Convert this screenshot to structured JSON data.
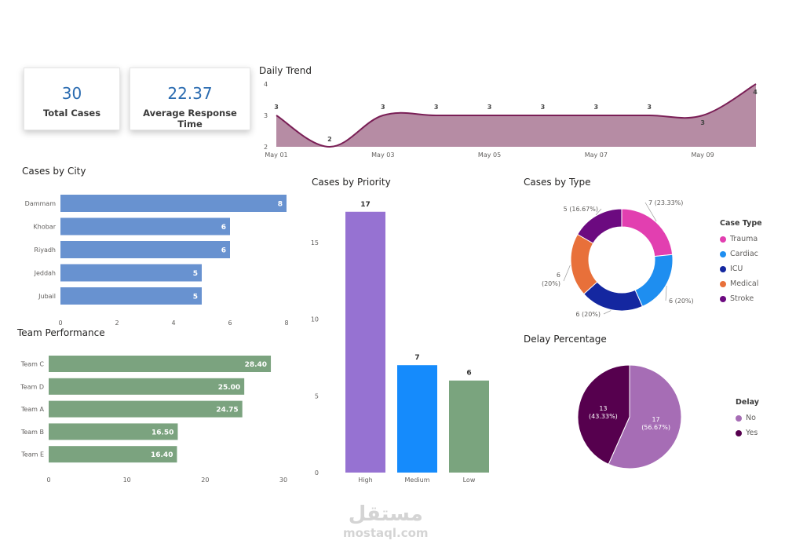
{
  "kpis": {
    "total_cases": {
      "value": "30",
      "label": "Total Cases"
    },
    "avg_response": {
      "value": "22.37",
      "label": "Average Response Time"
    }
  },
  "titles": {
    "daily_trend": "Daily Trend",
    "cases_by_city": "Cases by City",
    "team_performance": "Team Performance",
    "cases_by_priority": "Cases by Priority",
    "cases_by_type": "Cases by Type",
    "delay_percentage": "Delay Percentage"
  },
  "watermark": {
    "arabic": "مستقل",
    "latin": "mostaql.com"
  },
  "chart_data": [
    {
      "id": "daily_trend",
      "type": "area",
      "title": "Daily Trend",
      "x": [
        "May 01",
        "May 02",
        "May 03",
        "May 04",
        "May 05",
        "May 06",
        "May 07",
        "May 08",
        "May 09",
        "May 10"
      ],
      "x_tick_labels": [
        "May 01",
        "May 03",
        "May 05",
        "May 07",
        "May 09"
      ],
      "values": [
        3,
        2,
        3,
        3,
        3,
        3,
        3,
        3,
        3,
        4
      ],
      "data_labels": [
        "3",
        "2",
        "3",
        "3",
        "3",
        "3",
        "3",
        "3",
        "3",
        "4"
      ],
      "ylim": [
        2,
        4
      ],
      "y_ticks": [
        2,
        3,
        4
      ],
      "color": "#7a1f56",
      "fill": "#b68ca4"
    },
    {
      "id": "cases_by_city",
      "type": "bar",
      "orientation": "horizontal",
      "title": "Cases by City",
      "categories": [
        "Dammam",
        "Khobar",
        "Riyadh",
        "Jeddah",
        "Jubail"
      ],
      "values": [
        8,
        6,
        6,
        5,
        5
      ],
      "xlim": [
        0,
        8
      ],
      "x_ticks": [
        0,
        2,
        4,
        6,
        8
      ],
      "color": "#6892d0"
    },
    {
      "id": "team_performance",
      "type": "bar",
      "orientation": "horizontal",
      "title": "Team Performance",
      "categories": [
        "Team C",
        "Team D",
        "Team A",
        "Team B",
        "Team E"
      ],
      "values": [
        28.4,
        25.0,
        24.75,
        16.5,
        16.4
      ],
      "data_labels": [
        "28.40",
        "25.00",
        "24.75",
        "16.50",
        "16.40"
      ],
      "xlim": [
        0,
        30
      ],
      "x_ticks": [
        0,
        10,
        20,
        30
      ],
      "color": "#7ba37f"
    },
    {
      "id": "cases_by_priority",
      "type": "bar",
      "orientation": "vertical",
      "title": "Cases by Priority",
      "categories": [
        "High",
        "Medium",
        "Low"
      ],
      "values": [
        17,
        7,
        6
      ],
      "colors": [
        "#9672d2",
        "#158bfc",
        "#7aa47e"
      ],
      "ylim": [
        0,
        17.5
      ],
      "y_ticks": [
        0,
        5,
        10,
        15
      ]
    },
    {
      "id": "cases_by_type",
      "type": "pie",
      "variant": "donut",
      "title": "Cases by Type",
      "legend_title": "Case Type",
      "categories": [
        "Trauma",
        "Cardiac",
        "ICU",
        "Medical",
        "Stroke"
      ],
      "values": [
        7,
        6,
        6,
        6,
        5
      ],
      "data_labels": [
        "7 (23.33%)",
        "6 (20%)",
        "6 (20%)",
        "6 (20%)",
        "5 (16.67%)"
      ],
      "colors": [
        "#e23fb0",
        "#1e8ef0",
        "#1427a0",
        "#e8703a",
        "#6c0a80"
      ],
      "legend_position": "right"
    },
    {
      "id": "delay_percentage",
      "type": "pie",
      "title": "Delay Percentage",
      "legend_title": "Delay",
      "categories": [
        "No",
        "Yes"
      ],
      "values": [
        17,
        13
      ],
      "data_labels": [
        "17",
        "13"
      ],
      "data_label_pcts": [
        "(56.67%)",
        "(43.33%)"
      ],
      "colors": [
        "#a66db5",
        "#56004e"
      ],
      "legend_position": "right"
    }
  ]
}
